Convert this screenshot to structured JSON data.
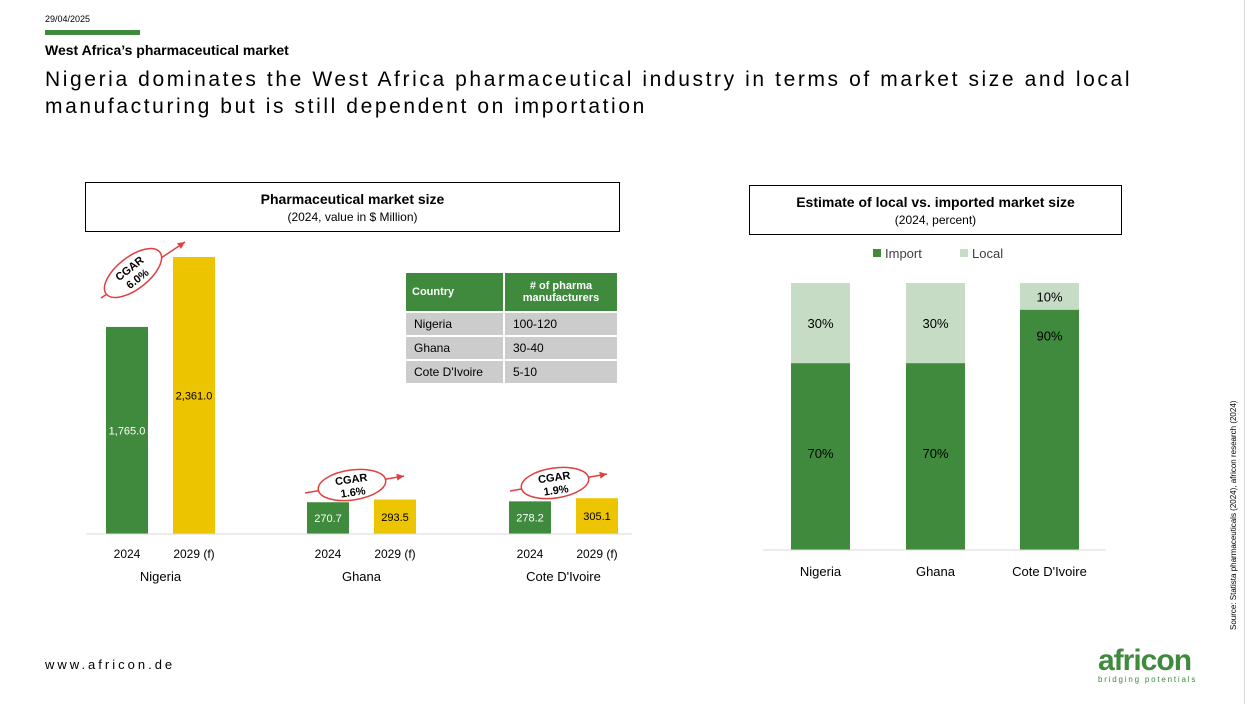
{
  "header": {
    "date": "29/04/2025",
    "section": "West Africa’s pharmaceutical market",
    "headline": "Nigeria dominates the West Africa pharmaceutical industry in terms of market size and local manufacturing but is still dependent on importation"
  },
  "colors": {
    "green": "#3f8a3c",
    "yellow": "#edc400",
    "light_green": "#c6dcc4",
    "table_grey": "#cccccc"
  },
  "chart_data": [
    {
      "type": "bar",
      "title": "Pharmaceutical market size",
      "subtitle": "(2024, value in $ Million)",
      "groups": [
        "Nigeria",
        "Ghana",
        "Cote D'Ivoire"
      ],
      "bar_labels": [
        "2024",
        "2029 (f)"
      ],
      "series": [
        {
          "values": [
            1765.0,
            270.7,
            278.2
          ],
          "labels": [
            "1,765.0",
            "270.7",
            "278.2"
          ],
          "color": "#3f8a3c"
        },
        {
          "values": [
            2361.0,
            293.5,
            305.1
          ],
          "labels": [
            "2,361.0",
            "293.5",
            "305.1"
          ],
          "color": "#edc400"
        }
      ],
      "cagr": [
        {
          "label": "CGAR",
          "value": "6.0%"
        },
        {
          "label": "CGAR",
          "value": "1.6%"
        },
        {
          "label": "CGAR",
          "value": "1.9%"
        }
      ],
      "ylim": [
        0,
        2500
      ],
      "grid": false
    },
    {
      "type": "bar",
      "stacked": true,
      "title": "Estimate of local vs. imported market size",
      "subtitle": "(2024, percent)",
      "categories": [
        "Nigeria",
        "Ghana",
        "Cote D'Ivoire"
      ],
      "series": [
        {
          "name": "Import",
          "values": [
            70,
            70,
            90
          ],
          "labels": [
            "70%",
            "70%",
            "90%"
          ],
          "color": "#3f8a3c"
        },
        {
          "name": "Local",
          "values": [
            30,
            30,
            10
          ],
          "labels": [
            "30%",
            "30%",
            "10%"
          ],
          "color": "#c6dcc4"
        }
      ],
      "ylim": [
        0,
        100
      ],
      "legend": "top"
    }
  ],
  "table": {
    "headers": [
      "Country",
      "# of pharma manufacturers"
    ],
    "rows": [
      [
        "Nigeria",
        "100-120"
      ],
      [
        "Ghana",
        "30-40"
      ],
      [
        "Cote D'Ivoire",
        "5-10"
      ]
    ]
  },
  "footer": {
    "source": "Source: Statista pharmaceuticals (2024), africon research (2024)",
    "website": "www.africon.de",
    "logo_text": "africon",
    "logo_tagline": "bridging potentials"
  }
}
